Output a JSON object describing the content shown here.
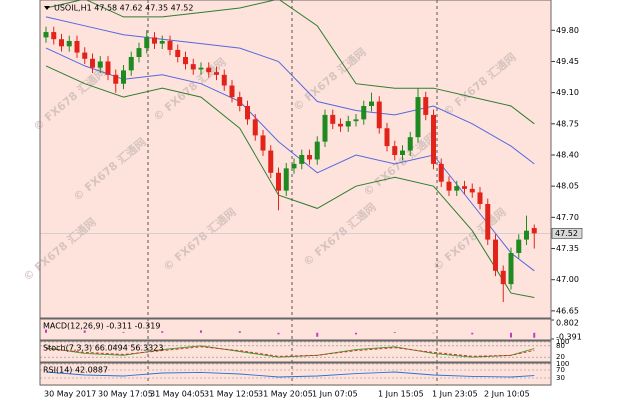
{
  "chart_data": [
    {
      "type": "candlestick",
      "title": "USOIL,H1  47.58 47.62 47.35 47.52",
      "open": [
        49.72,
        49.78,
        49.7,
        49.62,
        49.68,
        49.55,
        49.48,
        49.38,
        49.45,
        49.3,
        49.2,
        49.35,
        49.5,
        49.6,
        49.72,
        49.65,
        49.68,
        49.58,
        49.5,
        49.42,
        49.36,
        49.38,
        49.33,
        49.3,
        49.18,
        49.05,
        48.95,
        48.8,
        48.62,
        48.45,
        48.2,
        48.0,
        48.25,
        48.3,
        48.4,
        48.35,
        48.55,
        48.85,
        48.75,
        48.72,
        48.78,
        48.8,
        48.95,
        49.0,
        48.7,
        48.5,
        48.4,
        48.45,
        48.6,
        49.05,
        48.85,
        48.3,
        48.1,
        48.0,
        48.05,
        48.02,
        47.98,
        47.85,
        47.45,
        47.1,
        46.95,
        47.3,
        47.45,
        47.58
      ],
      "high": [
        49.84,
        49.84,
        49.76,
        49.74,
        49.74,
        49.61,
        49.54,
        49.51,
        49.51,
        49.36,
        49.41,
        49.56,
        49.66,
        49.8,
        49.78,
        49.74,
        49.74,
        49.64,
        49.56,
        49.48,
        49.44,
        49.44,
        49.39,
        49.36,
        49.24,
        49.11,
        49.01,
        48.86,
        48.68,
        48.51,
        48.26,
        48.31,
        48.36,
        48.46,
        48.46,
        48.61,
        48.91,
        48.91,
        48.81,
        48.84,
        48.86,
        49.01,
        49.1,
        49.06,
        48.76,
        48.56,
        48.51,
        48.66,
        49.15,
        49.11,
        48.91,
        48.36,
        48.16,
        48.11,
        48.11,
        48.08,
        48.04,
        47.91,
        47.51,
        47.16,
        47.36,
        47.51,
        47.72,
        47.62
      ],
      "low": [
        49.66,
        49.64,
        49.56,
        49.56,
        49.49,
        49.42,
        49.32,
        49.32,
        49.24,
        49.1,
        49.14,
        49.29,
        49.44,
        49.54,
        49.59,
        49.59,
        49.52,
        49.44,
        49.36,
        49.3,
        49.3,
        49.27,
        49.24,
        49.12,
        48.99,
        48.89,
        48.74,
        48.56,
        48.39,
        48.14,
        47.78,
        47.94,
        48.19,
        48.24,
        48.29,
        48.29,
        48.49,
        48.69,
        48.66,
        48.66,
        48.72,
        48.74,
        48.89,
        48.64,
        48.44,
        48.34,
        48.34,
        48.39,
        48.54,
        48.79,
        48.24,
        48.04,
        47.94,
        47.94,
        47.96,
        47.92,
        47.79,
        47.39,
        47.04,
        46.75,
        46.89,
        47.24,
        47.39,
        47.35
      ],
      "close": [
        49.78,
        49.7,
        49.62,
        49.68,
        49.55,
        49.48,
        49.38,
        49.45,
        49.3,
        49.2,
        49.35,
        49.5,
        49.6,
        49.72,
        49.65,
        49.68,
        49.58,
        49.5,
        49.42,
        49.36,
        49.38,
        49.33,
        49.3,
        49.18,
        49.05,
        48.95,
        48.8,
        48.62,
        48.45,
        48.2,
        48.0,
        48.25,
        48.3,
        48.4,
        48.35,
        48.55,
        48.85,
        48.75,
        48.72,
        48.78,
        48.8,
        48.95,
        49.0,
        48.7,
        48.5,
        48.4,
        48.45,
        48.6,
        49.05,
        48.85,
        48.3,
        48.1,
        48.0,
        48.05,
        48.02,
        47.98,
        47.85,
        47.45,
        47.1,
        46.95,
        47.3,
        47.45,
        47.55,
        47.52
      ],
      "up_color": "#1f8a1f",
      "down_color": "#e2231a",
      "ylim": [
        46.57,
        50.14
      ],
      "yticks": [
        {
          "value": 49.8,
          "label": "49.80"
        },
        49.45,
        {
          "value": 49.1,
          "label": "49.10"
        },
        48.75,
        {
          "value": 48.4,
          "label": "48.40"
        },
        48.05,
        {
          "value": 47.7,
          "label": "47.70"
        },
        47.35,
        {
          "value": 47,
          "label": "47.00"
        },
        46.65
      ],
      "last_price": 47.52,
      "bands": {
        "x": [
          0,
          5,
          10,
          15,
          20,
          25,
          30,
          35,
          40,
          45,
          50,
          55,
          60,
          63
        ],
        "lines": [
          {
            "color": "#2f7d2f",
            "values": [
              50.05,
              50.15,
              49.95,
              49.95,
              50.0,
              50.05,
              50.15,
              49.85,
              49.2,
              49.15,
              49.15,
              49.05,
              48.95,
              48.75
            ]
          },
          {
            "color": "#5468e0",
            "values": [
              49.95,
              49.85,
              49.75,
              49.7,
              49.65,
              49.6,
              49.45,
              49.0,
              48.9,
              48.85,
              48.95,
              48.75,
              48.5,
              48.3
            ]
          },
          {
            "color": "#5468e0",
            "values": [
              49.6,
              49.4,
              49.25,
              49.3,
              49.2,
              49.0,
              48.55,
              48.2,
              48.4,
              48.3,
              48.4,
              47.85,
              47.3,
              47.1
            ]
          },
          {
            "color": "#2f7d2f",
            "values": [
              49.4,
              49.2,
              49.05,
              49.15,
              49.05,
              48.7,
              47.95,
              47.8,
              48.05,
              48.15,
              48.05,
              47.55,
              46.85,
              46.8
            ]
          }
        ]
      },
      "xtick_labels": [
        "30 May 2017",
        "30 May 17:05",
        "31 May 04:05",
        "31 May 12:05",
        "31 May 20:05",
        "1 Jun 07:05",
        "1 Jun 15:05",
        "1 Jun 23:05",
        "2 Jun 10:05"
      ]
    },
    {
      "type": "bar",
      "title": "MACD(12,26,9) -0.311 -0.319",
      "x": [
        0,
        5,
        10,
        15,
        20,
        25,
        30,
        35,
        40,
        45,
        50,
        55,
        60,
        63
      ],
      "values": [
        0.2,
        0.15,
        0.05,
        0.1,
        0.15,
        0.1,
        -0.1,
        -0.25,
        -0.1,
        0.05,
        0.0,
        -0.1,
        -0.3,
        -0.311
      ],
      "color": "#c03cc0",
      "ylim": [
        -0.391,
        0.802
      ],
      "yticks": [
        0.802,
        -0.391
      ]
    },
    {
      "type": "line",
      "title": "Stoch(7,3,3) 66.0494 56.3323",
      "x": [
        0,
        5,
        10,
        15,
        20,
        25,
        30,
        35,
        40,
        45,
        50,
        55,
        60,
        63
      ],
      "series": [
        {
          "color": "#2ca02c",
          "values": [
            70,
            40,
            30,
            60,
            80,
            50,
            20,
            30,
            60,
            75,
            40,
            20,
            30,
            66.0494
          ]
        },
        {
          "color": "#e2231a",
          "values": [
            65,
            45,
            35,
            55,
            75,
            55,
            25,
            30,
            55,
            70,
            45,
            25,
            30,
            56.3323
          ]
        }
      ],
      "ylim": [
        0,
        100
      ],
      "yticks": [
        100,
        80,
        20
      ]
    },
    {
      "type": "line",
      "title": "RSI(14) 42.0887",
      "x": [
        0,
        5,
        10,
        15,
        20,
        25,
        30,
        35,
        40,
        45,
        50,
        55,
        60,
        63
      ],
      "series": [
        {
          "color": "#2b6fd6",
          "values": [
            60,
            45,
            40,
            55,
            58,
            50,
            35,
            40,
            52,
            60,
            45,
            38,
            35,
            42.0887
          ]
        }
      ],
      "ylim": [
        0,
        100
      ],
      "yticks": [
        100,
        70,
        30
      ]
    }
  ],
  "watermark": "© FX678 汇通网"
}
